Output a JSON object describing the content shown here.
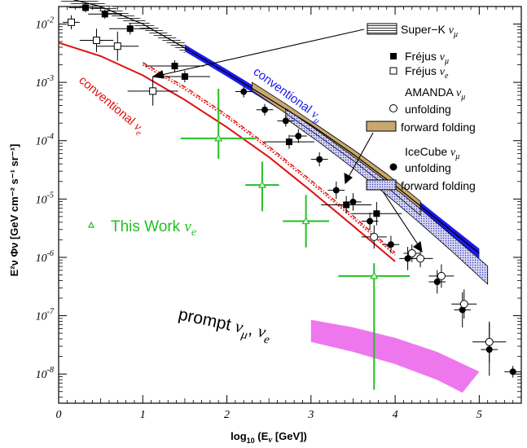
{
  "chart_data": {
    "type": "scatter",
    "x_axis": {
      "range": [
        0,
        5.5
      ],
      "ticks": [
        "0",
        "1",
        "2",
        "3",
        "4",
        "5"
      ],
      "label": {
        "main": "log",
        "sub": "10",
        "mid": " (E",
        "nu": "ν",
        "end": " [GeV])"
      }
    },
    "y_axis": {
      "scale": "log",
      "range": [
        -8.5,
        -1.7
      ],
      "ticks": [
        {
          "value": -2,
          "mantissa": "10",
          "exponent": "-2"
        },
        {
          "value": -3,
          "mantissa": "10",
          "exponent": "-3"
        },
        {
          "value": -4,
          "mantissa": "10",
          "exponent": "-4"
        },
        {
          "value": -5,
          "mantissa": "10",
          "exponent": "-5"
        },
        {
          "value": -6,
          "mantissa": "10",
          "exponent": "-6"
        },
        {
          "value": -7,
          "mantissa": "10",
          "exponent": "-7"
        },
        {
          "value": -8,
          "mantissa": "10",
          "exponent": "-8"
        }
      ],
      "label": "E²ν Φν [GeV cm⁻² s⁻¹ sr⁻¹]"
    },
    "curves": {
      "conv_numu_upper": [
        [
          0.0,
          -1.48
        ],
        [
          0.5,
          -1.66
        ],
        [
          1.0,
          -1.95
        ],
        [
          1.5,
          -2.35
        ],
        [
          2.0,
          -2.78
        ],
        [
          2.5,
          -3.22
        ],
        [
          3.0,
          -3.67
        ],
        [
          3.5,
          -4.17
        ],
        [
          4.0,
          -4.7
        ],
        [
          4.5,
          -5.28
        ],
        [
          5.0,
          -5.85
        ]
      ],
      "conv_numu_lower": [
        [
          0.0,
          -1.56
        ],
        [
          0.5,
          -1.74
        ],
        [
          1.0,
          -2.05
        ],
        [
          1.5,
          -2.47
        ],
        [
          2.0,
          -2.9
        ],
        [
          2.5,
          -3.35
        ],
        [
          3.0,
          -3.8
        ],
        [
          3.5,
          -4.3
        ],
        [
          4.0,
          -4.84
        ],
        [
          4.5,
          -5.42
        ],
        [
          5.0,
          -6.02
        ]
      ],
      "conv_numu_line": [
        [
          0.0,
          -1.52
        ],
        [
          0.5,
          -1.7
        ],
        [
          1.0,
          -2.0
        ],
        [
          1.5,
          -2.41
        ],
        [
          2.0,
          -2.84
        ],
        [
          2.5,
          -3.28
        ],
        [
          3.0,
          -3.73
        ],
        [
          3.5,
          -4.23
        ],
        [
          4.0,
          -4.77
        ],
        [
          4.5,
          -5.35
        ],
        [
          5.0,
          -5.93
        ]
      ],
      "superk_band_upper": [
        [
          0.0,
          -1.44
        ],
        [
          0.5,
          -1.62
        ],
        [
          1.0,
          -1.92
        ],
        [
          1.5,
          -2.32
        ]
      ],
      "superk_band_lower": [
        [
          0.0,
          -1.6
        ],
        [
          0.5,
          -1.78
        ],
        [
          1.0,
          -2.09
        ],
        [
          1.5,
          -2.5
        ]
      ],
      "amanda_ff_upper": [
        [
          2.3,
          -3.0
        ],
        [
          2.7,
          -3.37
        ],
        [
          3.1,
          -3.76
        ],
        [
          3.5,
          -4.15
        ],
        [
          3.9,
          -4.57
        ],
        [
          4.3,
          -5.04
        ]
      ],
      "amanda_ff_lower": [
        [
          2.3,
          -3.14
        ],
        [
          2.7,
          -3.53
        ],
        [
          3.1,
          -3.93
        ],
        [
          3.5,
          -4.34
        ],
        [
          3.9,
          -4.79
        ],
        [
          4.3,
          -5.28
        ]
      ],
      "icecube_ff_upper": [
        [
          2.7,
          -3.45
        ],
        [
          3.1,
          -3.85
        ],
        [
          3.5,
          -4.27
        ],
        [
          3.9,
          -4.7
        ],
        [
          4.3,
          -5.17
        ],
        [
          4.7,
          -5.66
        ],
        [
          5.1,
          -6.15
        ]
      ],
      "icecube_ff_lower": [
        [
          2.7,
          -3.62
        ],
        [
          3.1,
          -4.03
        ],
        [
          3.5,
          -4.47
        ],
        [
          3.9,
          -4.93
        ],
        [
          4.3,
          -5.42
        ],
        [
          4.7,
          -5.93
        ],
        [
          5.1,
          -6.46
        ]
      ],
      "conv_nue": [
        [
          0.0,
          -2.32
        ],
        [
          0.5,
          -2.55
        ],
        [
          1.0,
          -2.88
        ],
        [
          1.5,
          -3.3
        ],
        [
          2.0,
          -3.77
        ],
        [
          2.5,
          -4.28
        ],
        [
          3.0,
          -4.86
        ],
        [
          3.5,
          -5.46
        ],
        [
          4.0,
          -6.07
        ]
      ],
      "conv_nue_dash1": [
        [
          1.0,
          -2.66
        ],
        [
          1.5,
          -3.08
        ],
        [
          2.0,
          -3.56
        ],
        [
          2.5,
          -4.1
        ],
        [
          3.0,
          -4.68
        ],
        [
          3.5,
          -5.29
        ],
        [
          4.0,
          -5.92
        ]
      ],
      "conv_nue_dash2": [
        [
          1.0,
          -2.7
        ],
        [
          1.5,
          -3.12
        ],
        [
          2.0,
          -3.6
        ],
        [
          2.5,
          -4.14
        ],
        [
          3.0,
          -4.72
        ],
        [
          3.5,
          -5.33
        ],
        [
          4.0,
          -5.96
        ]
      ],
      "prompt_upper": [
        [
          3.0,
          -7.07
        ],
        [
          3.5,
          -7.2
        ],
        [
          4.0,
          -7.38
        ],
        [
          4.5,
          -7.62
        ],
        [
          5.0,
          -7.96
        ]
      ],
      "prompt_lower": [
        [
          3.0,
          -7.45
        ],
        [
          3.5,
          -7.62
        ],
        [
          4.0,
          -7.83
        ],
        [
          4.5,
          -8.1
        ],
        [
          4.8,
          -8.32
        ]
      ]
    },
    "points": {
      "frejus_numu": [
        [
          0.32,
          -1.72,
          0.2,
          0.08
        ],
        [
          0.55,
          -1.83,
          0.2,
          0.08
        ],
        [
          0.85,
          -2.08,
          0.25,
          0.1
        ],
        [
          1.38,
          -2.72,
          0.35,
          0.1
        ],
        [
          1.5,
          -2.9,
          0.3,
          0.1
        ],
        [
          2.74,
          -4.02,
          0.3,
          0.12
        ],
        [
          3.42,
          -5.1,
          0.3,
          0.15
        ],
        [
          3.78,
          -5.25,
          0.3,
          0.2
        ]
      ],
      "frejus_nue": [
        [
          0.15,
          -1.97,
          0.1,
          0.12
        ],
        [
          0.45,
          -2.28,
          0.2,
          0.2
        ],
        [
          0.7,
          -2.38,
          0.25,
          0.25
        ],
        [
          1.12,
          -3.15,
          0.3,
          0.25
        ]
      ],
      "amanda_unf": [
        [
          3.75,
          -5.65,
          0.15,
          0.2
        ],
        [
          4.2,
          -5.93,
          0.1,
          0.15
        ],
        [
          4.3,
          -6.02,
          0.15,
          0.15
        ],
        [
          4.55,
          -6.32,
          0.15,
          0.2
        ],
        [
          4.82,
          -6.8,
          0.15,
          0.25
        ],
        [
          5.12,
          -7.45,
          0.2,
          0.35
        ]
      ],
      "icecube_unf": [
        [
          2.2,
          -3.16,
          0.1,
          0.1
        ],
        [
          2.45,
          -3.47,
          0.1,
          0.1
        ],
        [
          2.7,
          -3.66,
          0.1,
          0.1
        ],
        [
          2.85,
          -3.92,
          0.1,
          0.12
        ],
        [
          3.1,
          -4.32,
          0.1,
          0.12
        ],
        [
          3.3,
          -4.85,
          0.1,
          0.15
        ],
        [
          3.5,
          -5.05,
          0.1,
          0.15
        ],
        [
          3.7,
          -5.38,
          0.1,
          0.15
        ],
        [
          3.95,
          -5.78,
          0.1,
          0.15
        ],
        [
          4.15,
          -6.02,
          0.1,
          0.2
        ],
        [
          4.5,
          -6.42,
          0.1,
          0.2
        ],
        [
          4.8,
          -6.9,
          0.1,
          0.3
        ],
        [
          5.12,
          -7.58,
          0.1,
          0.45
        ],
        [
          5.4,
          -7.96,
          0.1,
          0.1
        ]
      ],
      "this_work": [
        [
          1.9,
          -3.96,
          0.9,
          0.35,
          0.85
        ],
        [
          2.42,
          -4.76,
          0.4,
          0.45,
          0.4
        ],
        [
          2.94,
          -5.38,
          0.55,
          0.45,
          0.45
        ],
        [
          3.75,
          -6.32,
          0.85,
          1.95,
          0.22
        ]
      ]
    },
    "annotations": {
      "conv_numu": "conventional ",
      "conv_numu_sub": "μ",
      "conv_nue": "conventional ",
      "conv_nue_sub": "e",
      "this_work": "This Work ",
      "this_work_sub": "e",
      "prompt": "prompt ",
      "prompt_mid": "μ",
      "prompt_sep": ", ",
      "prompt_end": "e",
      "nu": "ν"
    },
    "legend": {
      "superk": "Super−K ",
      "frejus_numu": "Fréjus ",
      "frejus_nue": "Fréjus ",
      "amanda": "AMANDA ",
      "icecube": "IceCube ",
      "unfolding": "unfolding",
      "forward": "forward folding",
      "mu": "μ",
      "e": "e",
      "nu": "ν"
    },
    "colors": {
      "conv_numu": "#1a1aee",
      "conv_nue": "#e01010",
      "this_work": "#22c022",
      "prompt": "#ee77ee",
      "amanda_band": "#c8a86e",
      "icecube_band": "#8c8cd6"
    }
  }
}
